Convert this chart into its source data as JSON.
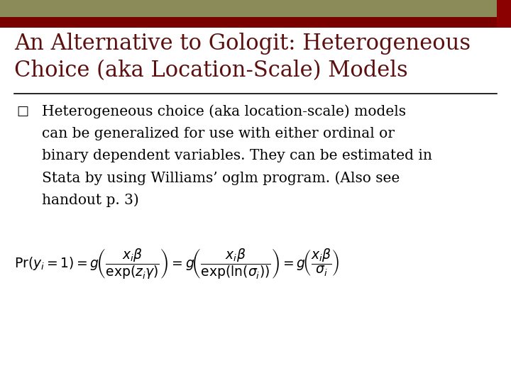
{
  "title_line1": "An Alternative to Gologit: Heterogeneous",
  "title_line2": "Choice (aka Location-Scale) Models",
  "title_color": "#5C1010",
  "title_fontsize": 22,
  "header_bar_color1": "#8B8B5A",
  "header_bar_color2": "#7A0000",
  "bg_color": "#FFFFFF",
  "bullet_lines": [
    "Heterogeneous choice (aka location-scale) models",
    "can be generalized for use with either ordinal or",
    "binary dependent variables. They can be estimated in",
    "Stata by using Williams’ oglm program. (Also see",
    "handout p. 3)"
  ],
  "bullet_color": "#000000",
  "bullet_fontsize": 14.5,
  "separator_color": "#000000",
  "formula_color": "#000000",
  "corner_color": "#8B0000"
}
